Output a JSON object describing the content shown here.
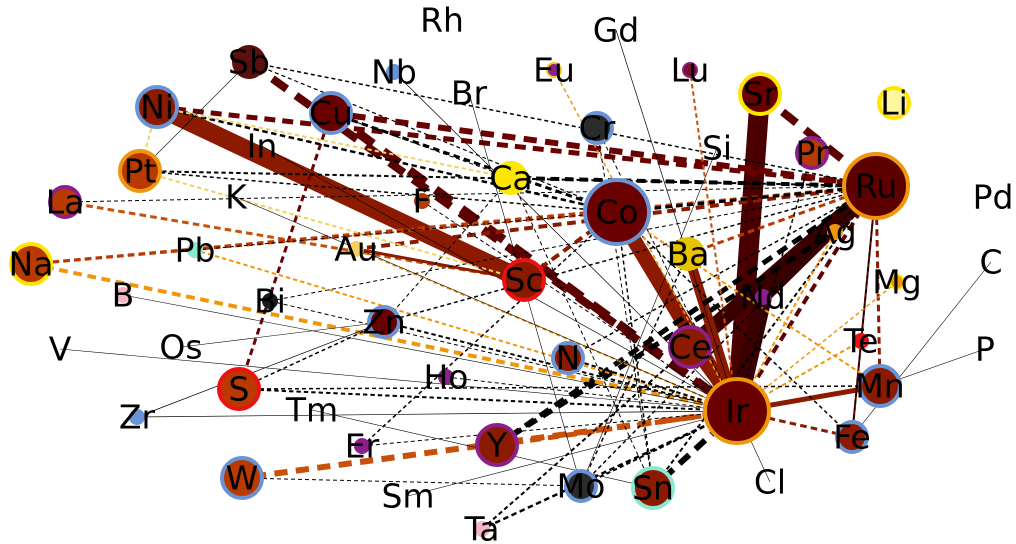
{
  "nodes": [
    {
      "id": "Rh",
      "label": "Rh"
    },
    {
      "id": "Gd",
      "label": "Gd"
    },
    {
      "id": "Sb",
      "label": "Sb",
      "fill": "#5c0f0f",
      "ring": "#5c0f0f",
      "size": "small"
    },
    {
      "id": "Nb",
      "label": "Nb",
      "fill": "#6a93d6",
      "ring": "#6a93d6",
      "size": "tiny"
    },
    {
      "id": "Eu",
      "label": "Eu",
      "fill": "#8b1f8b",
      "ring": "#f5c518",
      "size": "tiny"
    },
    {
      "id": "Lu",
      "label": "Lu",
      "fill": "#7a0d2a",
      "ring": "#8b1f8b",
      "size": "tiny"
    },
    {
      "id": "Sr",
      "label": "Sr",
      "fill": "#6b0000",
      "ring": "#ffe600",
      "size": "medium"
    },
    {
      "id": "Ni",
      "label": "Ni",
      "fill": "#8b1a00",
      "ring": "#6a93d6",
      "size": "medium"
    },
    {
      "id": "Cu",
      "label": "Cu",
      "fill": "#6b0000",
      "ring": "#6a93d6",
      "size": "medium"
    },
    {
      "id": "Br",
      "label": "Br"
    },
    {
      "id": "Cr",
      "label": "Cr",
      "fill": "#2b2b2b",
      "ring": "#6a93d6",
      "size": "small"
    },
    {
      "id": "Li",
      "label": "Li",
      "fill": "#fff6a0",
      "ring": "#ffe600",
      "size": "small"
    },
    {
      "id": "In",
      "label": "In"
    },
    {
      "id": "Si",
      "label": "Si"
    },
    {
      "id": "Pr",
      "label": "Pr",
      "fill": "#b83a00",
      "ring": "#8b1f8b",
      "size": "small"
    },
    {
      "id": "Pt",
      "label": "Pt",
      "fill": "#b83a00",
      "ring": "#f0960a",
      "size": "medium"
    },
    {
      "id": "Ca",
      "label": "Ca",
      "fill": "#ffe600",
      "ring": "#ffe600",
      "size": "small"
    },
    {
      "id": "Ru",
      "label": "Ru",
      "fill": "#5c0000",
      "ring": "#f0960a",
      "size": "large"
    },
    {
      "id": "La",
      "label": "La",
      "fill": "#b83a00",
      "ring": "#8b1f8b",
      "size": "small"
    },
    {
      "id": "K",
      "label": "K"
    },
    {
      "id": "F",
      "label": "F",
      "fill": "#b83a00",
      "ring": "#b83a00",
      "size": "tiny"
    },
    {
      "id": "Co",
      "label": "Co",
      "fill": "#6b0000",
      "ring": "#6a93d6",
      "size": "large"
    },
    {
      "id": "Pd",
      "label": "Pd"
    },
    {
      "id": "Ag",
      "label": "Ag",
      "fill": "#f0960a",
      "ring": "#f0960a",
      "size": "tiny"
    },
    {
      "id": "Na",
      "label": "Na",
      "fill": "#b83a00",
      "ring": "#ffe600",
      "size": "medium"
    },
    {
      "id": "Pb",
      "label": "Pb",
      "fill": "#8be8d0",
      "ring": "#8be8d0",
      "size": "tiny"
    },
    {
      "id": "Au",
      "label": "Au",
      "fill": "#f5d060",
      "ring": "#f5d060",
      "size": "tiny"
    },
    {
      "id": "Ba",
      "label": "Ba",
      "fill": "#e8c400",
      "ring": "#e8c400",
      "size": "small"
    },
    {
      "id": "C",
      "label": "C"
    },
    {
      "id": "Sc",
      "label": "Sc",
      "fill": "#8b1a00",
      "ring": "#ee1111",
      "size": "medium"
    },
    {
      "id": "Nd",
      "label": "Nd",
      "fill": "#8b1f8b",
      "ring": "#8b1f8b",
      "size": "tiny"
    },
    {
      "id": "Mg",
      "label": "Mg",
      "fill": "#f0960a",
      "ring": "#ffe600",
      "size": "tiny"
    },
    {
      "id": "B",
      "label": "B",
      "fill": "#f4b6c2",
      "ring": "#f4b6c2",
      "size": "tiny"
    },
    {
      "id": "Bi",
      "label": "Bi",
      "fill": "#1a1a1a",
      "ring": "#1a1a1a",
      "size": "tiny"
    },
    {
      "id": "Zn",
      "label": "Zn",
      "fill": "#6b0000",
      "ring": "#6a93d6",
      "size": "small"
    },
    {
      "id": "Te",
      "label": "Te",
      "fill": "#ee1111",
      "ring": "#ee1111",
      "size": "tiny"
    },
    {
      "id": "V",
      "label": "V"
    },
    {
      "id": "Os",
      "label": "Os"
    },
    {
      "id": "N",
      "label": "N",
      "fill": "#8b1a00",
      "ring": "#6a93d6",
      "size": "small"
    },
    {
      "id": "Ce",
      "label": "Ce",
      "fill": "#8b1a00",
      "ring": "#8b1f8b",
      "size": "medium"
    },
    {
      "id": "P",
      "label": "P"
    },
    {
      "id": "Ho",
      "label": "Ho",
      "fill": "#8b1f8b",
      "ring": "#8b1f8b",
      "size": "tiny"
    },
    {
      "id": "S",
      "label": "S",
      "fill": "#b83a00",
      "ring": "#ee1111",
      "size": "medium"
    },
    {
      "id": "Ir",
      "label": "Ir",
      "fill": "#6b0000",
      "ring": "#f0960a",
      "size": "large"
    },
    {
      "id": "Mn",
      "label": "Mn",
      "fill": "#8b1a00",
      "ring": "#6a93d6",
      "size": "medium"
    },
    {
      "id": "Zr",
      "label": "Zr",
      "fill": "#6a93d6",
      "ring": "#6a93d6",
      "size": "tiny"
    },
    {
      "id": "Tm",
      "label": "Tm"
    },
    {
      "id": "Er",
      "label": "Er",
      "fill": "#8b1f8b",
      "ring": "#8b1f8b",
      "size": "tiny"
    },
    {
      "id": "Y",
      "label": "Y",
      "fill": "#8b1a00",
      "ring": "#8b1f8b",
      "size": "medium"
    },
    {
      "id": "Fe",
      "label": "Fe",
      "fill": "#8b1a00",
      "ring": "#6a93d6",
      "size": "small"
    },
    {
      "id": "W",
      "label": "W",
      "fill": "#b83a00",
      "ring": "#6a93d6",
      "size": "medium"
    },
    {
      "id": "Sm",
      "label": "Sm"
    },
    {
      "id": "Mo",
      "label": "Mo",
      "fill": "#2b2b2b",
      "ring": "#6a93d6",
      "size": "small"
    },
    {
      "id": "Sn",
      "label": "Sn",
      "fill": "#8b1a00",
      "ring": "#8be8d0",
      "size": "medium"
    },
    {
      "id": "Cl",
      "label": "Cl"
    },
    {
      "id": "Ta",
      "label": "Ta",
      "fill": "#f4b6c2",
      "ring": "#f4b6c2",
      "size": "tiny"
    }
  ],
  "edges": [
    {
      "from": "Sb",
      "to": "Ir",
      "color": "#5c0000",
      "weight": 8,
      "style": "dashed"
    },
    {
      "from": "Sb",
      "to": "Ru",
      "color": "#000000",
      "weight": 1.5,
      "style": "dashed"
    },
    {
      "from": "Sb",
      "to": "Co",
      "color": "#000000",
      "weight": 1.2,
      "style": "dashed"
    },
    {
      "from": "Sb",
      "to": "Pt",
      "color": "#000000",
      "weight": 0.6,
      "style": "solid"
    },
    {
      "from": "Ni",
      "to": "Ru",
      "color": "#6b0000",
      "weight": 5,
      "style": "dashed"
    },
    {
      "from": "Ni",
      "to": "Co",
      "color": "#000000",
      "weight": 2.5,
      "style": "dashed"
    },
    {
      "from": "Ni",
      "to": "Sc",
      "color": "#8b1a00",
      "weight": 18,
      "style": "solid"
    },
    {
      "from": "Ni",
      "to": "Ca",
      "color": "#f5d060",
      "weight": 2,
      "style": "dashed"
    },
    {
      "from": "Ni",
      "to": "Pt",
      "color": "#f5d060",
      "weight": 2,
      "style": "dashed"
    },
    {
      "from": "Cu",
      "to": "Ru",
      "color": "#6b0000",
      "weight": 6,
      "style": "dashed"
    },
    {
      "from": "Cu",
      "to": "Co",
      "color": "#000000",
      "weight": 3,
      "style": "dashed"
    },
    {
      "from": "Cu",
      "to": "Ir",
      "color": "#5c0000",
      "weight": 9,
      "style": "dashed"
    },
    {
      "from": "Cu",
      "to": "S",
      "color": "#6b0000",
      "weight": 3,
      "style": "dashed"
    },
    {
      "from": "Cu",
      "to": "Ca",
      "color": "#000000",
      "weight": 1,
      "style": "dashed"
    },
    {
      "from": "Pt",
      "to": "Ru",
      "color": "#000000",
      "weight": 2,
      "style": "dashed"
    },
    {
      "from": "Pt",
      "to": "Co",
      "color": "#000000",
      "weight": 1.5,
      "style": "dashed"
    },
    {
      "from": "Pt",
      "to": "Sc",
      "color": "#f5d060",
      "weight": 2,
      "style": "dashed"
    },
    {
      "from": "La",
      "to": "Sc",
      "color": "#c8500a",
      "weight": 3,
      "style": "dashed"
    },
    {
      "from": "La",
      "to": "Ru",
      "color": "#000000",
      "weight": 1,
      "style": "dashed"
    },
    {
      "from": "Na",
      "to": "Ru",
      "color": "#b83a00",
      "weight": 3,
      "style": "dashed"
    },
    {
      "from": "Na",
      "to": "Ir",
      "color": "#f0960a",
      "weight": 4,
      "style": "dashed"
    },
    {
      "from": "Na",
      "to": "Co",
      "color": "#b83a00",
      "weight": 3,
      "style": "dashed"
    },
    {
      "from": "Sr",
      "to": "Ir",
      "color": "#4a0000",
      "weight": 20,
      "style": "solid"
    },
    {
      "from": "Sr",
      "to": "Ru",
      "color": "#5c0000",
      "weight": 8,
      "style": "dashed"
    },
    {
      "from": "Ru",
      "to": "Ir",
      "color": "#5c0000",
      "weight": 4,
      "style": "dashed"
    },
    {
      "from": "Ru",
      "to": "Y",
      "color": "#000000",
      "weight": 5,
      "style": "dashed"
    },
    {
      "from": "Ru",
      "to": "Ce",
      "color": "#3a0000",
      "weight": 16,
      "style": "solid"
    },
    {
      "from": "Ru",
      "to": "Mn",
      "color": "#8b1a00",
      "weight": 3,
      "style": "dashed"
    },
    {
      "from": "Ru",
      "to": "Fe",
      "color": "#000000",
      "weight": 2,
      "style": "dashed"
    },
    {
      "from": "Ru",
      "to": "Sn",
      "color": "#000000",
      "weight": 2,
      "style": "dashed"
    },
    {
      "from": "Ru",
      "to": "Ba",
      "color": "#b83a00",
      "weight": 3,
      "style": "dashed"
    },
    {
      "from": "Ru",
      "to": "Ca",
      "color": "#000000",
      "weight": 4,
      "style": "dashed"
    },
    {
      "from": "Ru",
      "to": "Co",
      "color": "#000000",
      "weight": 3,
      "style": "dashed"
    },
    {
      "from": "Ru",
      "to": "Au",
      "color": "#8b1a00",
      "weight": 4,
      "style": "dashed"
    },
    {
      "from": "Ru",
      "to": "Zn",
      "color": "#000000",
      "weight": 1.5,
      "style": "dashed"
    },
    {
      "from": "Ru",
      "to": "N",
      "color": "#000000",
      "weight": 1.5,
      "style": "dashed"
    },
    {
      "from": "Ru",
      "to": "Mo",
      "color": "#000000",
      "weight": 1.5,
      "style": "dashed"
    },
    {
      "from": "Ru",
      "to": "Nd",
      "color": "#3a0000",
      "weight": 14,
      "style": "solid"
    },
    {
      "from": "Co",
      "to": "Ir",
      "color": "#8b1a00",
      "weight": 15,
      "style": "solid"
    },
    {
      "from": "Co",
      "to": "Sc",
      "color": "#8b1a00",
      "weight": 4,
      "style": "dashed"
    },
    {
      "from": "Co",
      "to": "Mn",
      "color": "#f0960a",
      "weight": 2,
      "style": "dashed"
    },
    {
      "from": "Co",
      "to": "Fe",
      "color": "#000000",
      "weight": 1.5,
      "style": "dashed"
    },
    {
      "from": "Co",
      "to": "Sn",
      "color": "#000000",
      "weight": 1.5,
      "style": "dashed"
    },
    {
      "from": "Ir",
      "to": "Mn",
      "color": "#8b1a00",
      "weight": 5,
      "style": "solid"
    },
    {
      "from": "Ir",
      "to": "Y",
      "color": "#c8500a",
      "weight": 5,
      "style": "dashed"
    },
    {
      "from": "Ir",
      "to": "W",
      "color": "#c8500a",
      "weight": 6,
      "style": "dashed"
    },
    {
      "from": "Ir",
      "to": "Sn",
      "color": "#000000",
      "weight": 6,
      "style": "dashed"
    },
    {
      "from": "Ir",
      "to": "Fe",
      "color": "#8b1a00",
      "weight": 3,
      "style": "dashed"
    },
    {
      "from": "Ir",
      "to": "Ta",
      "color": "#000000",
      "weight": 2.5,
      "style": "dashed"
    },
    {
      "from": "Ir",
      "to": "Ba",
      "color": "#8b1a00",
      "weight": 10,
      "style": "solid"
    },
    {
      "from": "Ir",
      "to": "Ce",
      "color": "#8b1a00",
      "weight": 8,
      "style": "solid"
    },
    {
      "from": "Ir",
      "to": "Zn",
      "color": "#000000",
      "weight": 2,
      "style": "dashed"
    },
    {
      "from": "Ir",
      "to": "S",
      "color": "#000000",
      "weight": 2,
      "style": "dashed"
    },
    {
      "from": "Ir",
      "to": "Au",
      "color": "#f0960a",
      "weight": 2,
      "style": "dashed"
    },
    {
      "from": "Ir",
      "to": "Nd",
      "color": "#3a0000",
      "weight": 18,
      "style": "solid"
    },
    {
      "from": "Ir",
      "to": "Te",
      "color": "#f0960a",
      "weight": 2,
      "style": "dashed"
    },
    {
      "from": "Ir",
      "to": "Ag",
      "color": "#f0960a",
      "weight": 2,
      "style": "dashed"
    },
    {
      "from": "Ir",
      "to": "Pb",
      "color": "#f0960a",
      "weight": 2,
      "style": "dashed"
    },
    {
      "from": "Ir",
      "to": "Pr",
      "color": "#000000",
      "weight": 1.5,
      "style": "dashed"
    },
    {
      "from": "Ir",
      "to": "Lu",
      "color": "#c8500a",
      "weight": 2,
      "style": "dashed"
    },
    {
      "from": "Ir",
      "to": "N",
      "color": "#000000",
      "weight": 2,
      "style": "dashed"
    },
    {
      "from": "Ir",
      "to": "Mo",
      "color": "#000000",
      "weight": 2,
      "style": "dashed"
    },
    {
      "from": "Y",
      "to": "Ag",
      "color": "#000000",
      "weight": 5,
      "style": "dashed"
    },
    {
      "from": "Sn",
      "to": "Cr",
      "color": "#000000",
      "weight": 1,
      "style": "dashed"
    },
    {
      "from": "Mo",
      "to": "Ba",
      "color": "#000000",
      "weight": 1.5,
      "style": "dashed"
    },
    {
      "from": "Ta",
      "to": "Ce",
      "color": "#000000",
      "weight": 2,
      "style": "dashed"
    },
    {
      "from": "Fe",
      "to": "Ru",
      "color": "#6b0000",
      "weight": 2,
      "style": "dashed"
    },
    {
      "from": "Sc",
      "to": "Au",
      "color": "#8b1a00",
      "weight": 3,
      "style": "solid"
    },
    {
      "from": "Eu",
      "to": "Ir",
      "color": "#f0960a",
      "weight": 1.5,
      "style": "dashed"
    },
    {
      "from": "Cr",
      "to": "Ir",
      "color": "#000000",
      "weight": 1,
      "style": "dashed"
    },
    {
      "from": "Nb",
      "to": "Ir",
      "color": "#000000",
      "weight": 0.7,
      "style": "solid"
    },
    {
      "from": "Gd",
      "to": "Ir",
      "color": "#000000",
      "weight": 0.7,
      "style": "solid"
    },
    {
      "from": "S",
      "to": "Mn",
      "color": "#000000",
      "weight": 1.5,
      "style": "dashed"
    },
    {
      "from": "S",
      "to": "Zn",
      "color": "#000000",
      "weight": 1.5,
      "style": "dashed"
    },
    {
      "from": "Zr",
      "to": "Zn",
      "color": "#000000",
      "weight": 0.7,
      "style": "solid"
    },
    {
      "from": "Zr",
      "to": "Ir",
      "color": "#000000",
      "weight": 0.7,
      "style": "solid"
    },
    {
      "from": "V",
      "to": "Ir",
      "color": "#000000",
      "weight": 0.6,
      "style": "solid"
    },
    {
      "from": "W",
      "to": "Mo",
      "color": "#000000",
      "weight": 1,
      "style": "dashed"
    },
    {
      "from": "Er",
      "to": "Co",
      "color": "#000000",
      "weight": 1.5,
      "style": "dashed"
    },
    {
      "from": "Er",
      "to": "Ir",
      "color": "#000000",
      "weight": 1,
      "style": "dashed"
    },
    {
      "from": "Ho",
      "to": "Ir",
      "color": "#000000",
      "weight": 1,
      "style": "dashed"
    },
    {
      "from": "Bi",
      "to": "Ir",
      "color": "#000000",
      "weight": 1,
      "style": "dashed"
    },
    {
      "from": "Bi",
      "to": "Ru",
      "color": "#000000",
      "weight": 1,
      "style": "dashed"
    },
    {
      "from": "Pb",
      "to": "Co",
      "color": "#000000",
      "weight": 1,
      "style": "dashed"
    },
    {
      "from": "In",
      "to": "Ir",
      "color": "#000000",
      "weight": 0.6,
      "style": "solid"
    },
    {
      "from": "K",
      "to": "Ir",
      "color": "#000000",
      "weight": 0.6,
      "style": "solid"
    },
    {
      "from": "Br",
      "to": "Mo",
      "color": "#000000",
      "weight": 0.6,
      "style": "solid"
    },
    {
      "from": "Si",
      "to": "Mo",
      "color": "#000000",
      "weight": 0.6,
      "style": "solid"
    },
    {
      "from": "P",
      "to": "Mn",
      "color": "#000000",
      "weight": 0.6,
      "style": "solid"
    },
    {
      "from": "C",
      "to": "Fe",
      "color": "#000000",
      "weight": 0.6,
      "style": "solid"
    },
    {
      "from": "Mg",
      "to": "Ir",
      "color": "#f0960a",
      "weight": 1.5,
      "style": "dashed"
    },
    {
      "from": "Ca",
      "to": "Sn",
      "color": "#000000",
      "weight": 1,
      "style": "dashed"
    },
    {
      "from": "Ca",
      "to": "Zn",
      "color": "#000000",
      "weight": 1,
      "style": "dashed"
    },
    {
      "from": "Sm",
      "to": "Ir",
      "color": "#000000",
      "weight": 0.6,
      "style": "solid"
    },
    {
      "from": "Tm",
      "to": "Sn",
      "color": "#000000",
      "weight": 0.6,
      "style": "solid"
    },
    {
      "from": "Cl",
      "to": "Ir",
      "color": "#000000",
      "weight": 0.6,
      "style": "solid"
    },
    {
      "from": "F",
      "to": "Ir",
      "color": "#000000",
      "weight": 1,
      "style": "dashed"
    },
    {
      "from": "B",
      "to": "Ir",
      "color": "#000000",
      "weight": 0.6,
      "style": "solid"
    },
    {
      "from": "Os",
      "to": "Zn",
      "color": "#000000",
      "weight": 0.6,
      "style": "solid"
    }
  ]
}
